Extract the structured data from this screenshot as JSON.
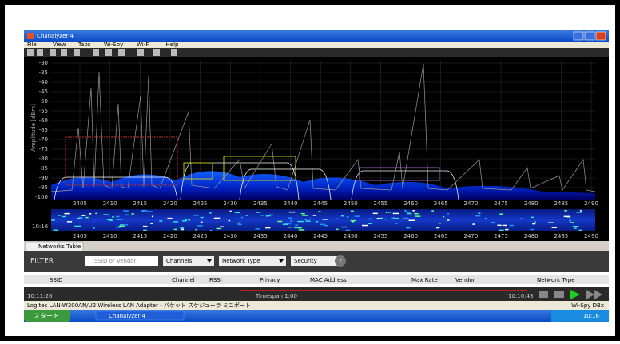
{
  "window": {
    "title": "Chanalyzer 4",
    "menu": [
      "File",
      "View",
      "Tabs",
      "Wi-Spy",
      "Wi-Fi",
      "Help"
    ]
  },
  "spectrum": {
    "y_axis_label": "Amplitude [dBm]",
    "y_labels": [
      "-30",
      "-35",
      "-40",
      "-45",
      "-50",
      "-55",
      "-60",
      "-65",
      "-70",
      "-75",
      "-80",
      "-85",
      "-90",
      "-95",
      "-100"
    ],
    "x_labels": [
      "2405",
      "2410",
      "2415",
      "2420",
      "2425",
      "2430",
      "2435",
      "2440",
      "2445",
      "2450",
      "2455",
      "2460",
      "2465",
      "2470",
      "2475",
      "2480",
      "2485",
      "2490"
    ]
  },
  "waterfall": {
    "time_label": "10:16"
  },
  "networks": {
    "tab": "Networks Table",
    "filter_label": "FILTER",
    "search_placeholder": "SSID or Vendor",
    "dropdowns": [
      "Channels",
      "Network Type",
      "Security"
    ],
    "help": "?",
    "columns": [
      "SSID",
      "Channel",
      "RSSI",
      "Privacy",
      "MAC Address",
      "Max Rate",
      "Vendor",
      "Network Type"
    ]
  },
  "timeline": {
    "start": "10:11:26",
    "timespan": "Timespan 1:00",
    "end": "10:10:43"
  },
  "status": {
    "adapter": "Logitec LAN-W300AN/U2 Wireless LAN Adapter - パケット スケジューラ ミニポート",
    "device": "Wi-Spy DBx"
  },
  "taskbar": {
    "start": "スタート",
    "app": "Chanalyzer 4",
    "clock": "10:16"
  }
}
